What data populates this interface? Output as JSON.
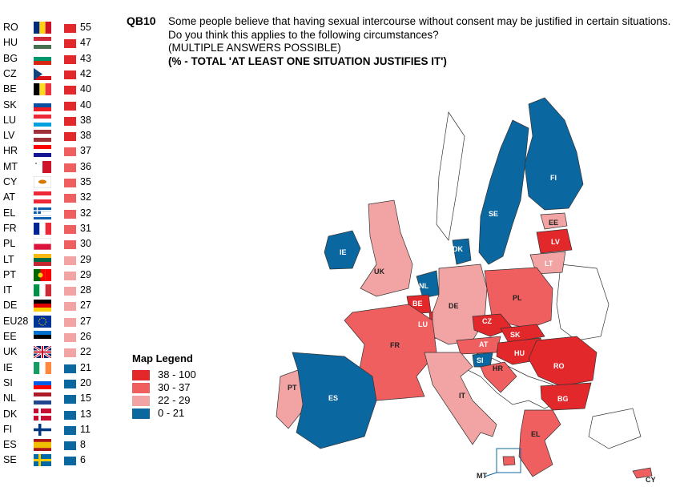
{
  "question": {
    "id": "QB10",
    "text": "Some people believe that having sexual intercourse without consent may be justified in certain situations. Do you think this applies to the following circumstances?",
    "note": "(MULTIPLE ANSWERS POSSIBLE)",
    "subtitle": "(% - TOTAL 'AT LEAST ONE SITUATION JUSTIFIES IT')"
  },
  "colors": {
    "band_38_100": "#e3282b",
    "band_30_37": "#ef5f5f",
    "band_22_29": "#f2a3a3",
    "band_0_21": "#0b67a0",
    "non_eu": "#ffffff"
  },
  "ranking": [
    {
      "code": "RO",
      "value": "55",
      "band": "band_38_100",
      "flag": "ro-flag-icon"
    },
    {
      "code": "HU",
      "value": "47",
      "band": "band_38_100",
      "flag": "hu-flag-icon"
    },
    {
      "code": "BG",
      "value": "43",
      "band": "band_38_100",
      "flag": "bg-flag-icon"
    },
    {
      "code": "CZ",
      "value": "42",
      "band": "band_38_100",
      "flag": "cz-flag-icon"
    },
    {
      "code": "BE",
      "value": "40",
      "band": "band_38_100",
      "flag": "be-flag-icon"
    },
    {
      "code": "SK",
      "value": "40",
      "band": "band_38_100",
      "flag": "sk-flag-icon"
    },
    {
      "code": "LU",
      "value": "38",
      "band": "band_38_100",
      "flag": "lu-flag-icon"
    },
    {
      "code": "LV",
      "value": "38",
      "band": "band_38_100",
      "flag": "lv-flag-icon"
    },
    {
      "code": "HR",
      "value": "37",
      "band": "band_30_37",
      "flag": "hr-flag-icon"
    },
    {
      "code": "MT",
      "value": "36",
      "band": "band_30_37",
      "flag": "mt-flag-icon"
    },
    {
      "code": "CY",
      "value": "35",
      "band": "band_30_37",
      "flag": "cy-flag-icon"
    },
    {
      "code": "AT",
      "value": "32",
      "band": "band_30_37",
      "flag": "at-flag-icon"
    },
    {
      "code": "EL",
      "value": "32",
      "band": "band_30_37",
      "flag": "el-flag-icon"
    },
    {
      "code": "FR",
      "value": "31",
      "band": "band_30_37",
      "flag": "fr-flag-icon"
    },
    {
      "code": "PL",
      "value": "30",
      "band": "band_30_37",
      "flag": "pl-flag-icon"
    },
    {
      "code": "LT",
      "value": "29",
      "band": "band_22_29",
      "flag": "lt-flag-icon"
    },
    {
      "code": "PT",
      "value": "29",
      "band": "band_22_29",
      "flag": "pt-flag-icon"
    },
    {
      "code": "IT",
      "value": "28",
      "band": "band_22_29",
      "flag": "it-flag-icon"
    },
    {
      "code": "DE",
      "value": "27",
      "band": "band_22_29",
      "flag": "de-flag-icon"
    },
    {
      "code": "EU28",
      "value": "27",
      "band": "band_22_29",
      "flag": "eu-flag-icon"
    },
    {
      "code": "EE",
      "value": "26",
      "band": "band_22_29",
      "flag": "ee-flag-icon"
    },
    {
      "code": "UK",
      "value": "22",
      "band": "band_22_29",
      "flag": "uk-flag-icon"
    },
    {
      "code": "IE",
      "value": "21",
      "band": "band_0_21",
      "flag": "ie-flag-icon"
    },
    {
      "code": "SI",
      "value": "20",
      "band": "band_0_21",
      "flag": "si-flag-icon"
    },
    {
      "code": "NL",
      "value": "15",
      "band": "band_0_21",
      "flag": "nl-flag-icon"
    },
    {
      "code": "DK",
      "value": "13",
      "band": "band_0_21",
      "flag": "dk-flag-icon"
    },
    {
      "code": "FI",
      "value": "11",
      "band": "band_0_21",
      "flag": "fi-flag-icon"
    },
    {
      "code": "ES",
      "value": "8",
      "band": "band_0_21",
      "flag": "es-flag-icon"
    },
    {
      "code": "SE",
      "value": "6",
      "band": "band_0_21",
      "flag": "se-flag-icon"
    }
  ],
  "legend": {
    "title": "Map Legend",
    "items": [
      {
        "label": "38 - 100",
        "band": "band_38_100"
      },
      {
        "label": "30 - 37",
        "band": "band_30_37"
      },
      {
        "label": "22 - 29",
        "band": "band_22_29"
      },
      {
        "label": "0 - 21",
        "band": "band_0_21"
      }
    ]
  },
  "map_labels": {
    "FI": "FI",
    "SE": "SE",
    "EE": "EE",
    "LV": "LV",
    "LT": "LT",
    "DK": "DK",
    "IE": "IE",
    "UK": "UK",
    "NL": "NL",
    "BE": "BE",
    "LU": "LU",
    "DE": "DE",
    "PL": "PL",
    "CZ": "CZ",
    "SK": "SK",
    "AT": "AT",
    "HU": "HU",
    "SI": "SI",
    "HR": "HR",
    "RO": "RO",
    "BG": "BG",
    "FR": "FR",
    "PT": "PT",
    "ES": "ES",
    "IT": "IT",
    "EL": "EL",
    "MT": "MT",
    "CY": "CY"
  }
}
